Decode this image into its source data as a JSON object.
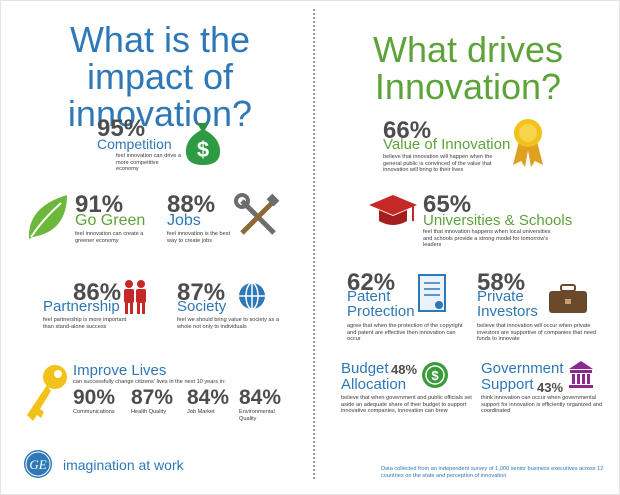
{
  "left": {
    "title": "What is the impact of innovation?",
    "competition": {
      "percent": "95%",
      "label": "Competition",
      "desc": "feel innovation can drive a more competitive economy",
      "icon": "money-bag-icon"
    },
    "green": {
      "percent": "91%",
      "label": "Go Green",
      "desc": "feel innovation can create a greener economy",
      "icon": "leaf-icon"
    },
    "jobs": {
      "percent": "88%",
      "label": "Jobs",
      "desc": "feel innovation is the best way to create jobs",
      "icon": "tools-icon"
    },
    "partnership": {
      "percent": "86%",
      "label": "Partnership",
      "desc": "feel partnership is more important than stand-alone success",
      "icon": "people-icon"
    },
    "society": {
      "percent": "87%",
      "label": "Society",
      "desc": "feel we should bring value to society as a whole not only to individuals",
      "icon": "globe-icon"
    },
    "lives": {
      "label": "Improve Lives",
      "desc": "can successfully change citizens' lives in the next 10 years in:",
      "icon": "key-icon",
      "metrics": [
        {
          "percent": "90%",
          "label": "Communications"
        },
        {
          "percent": "87%",
          "label": "Health Quality"
        },
        {
          "percent": "84%",
          "label": "Job  Market"
        },
        {
          "percent": "84%",
          "label": "Environmental Quality"
        }
      ]
    }
  },
  "right": {
    "title": "What drives Innovation?",
    "value": {
      "percent": "66%",
      "label": "Value of Innovation",
      "desc": "believe that innovation will happen when the general public is convinced of the value that innovation will bring to their lives",
      "icon": "award-ribbon-icon"
    },
    "universities": {
      "percent": "65%",
      "label": "Universities & Schools",
      "desc": "feel that innovation happens when local universities and schools provide a strong model for tomorrow's leaders",
      "icon": "graduation-cap-icon"
    },
    "patent": {
      "percent": "62%",
      "label": "Patent Protection",
      "desc": "agree that when the protection of the copyright and patent are effective then innovation can occur",
      "icon": "document-icon"
    },
    "investors": {
      "percent": "58%",
      "label": "Private Investors",
      "desc": "believe that innovation will occur when private investors are supportive of companies that need funds to innovate",
      "icon": "briefcase-icon"
    },
    "budget": {
      "percent": "48%",
      "label": "Budget Allocation",
      "desc": "believe that when government and public officials set aside an adequate share of their budget to support innovative companies, innovation can brew",
      "icon": "dollar-coin-icon"
    },
    "government": {
      "percent": "43%",
      "label": "Government Support",
      "desc": "think innovation can occur when governmental support for innovation is efficiently organized and coordinated",
      "icon": "government-building-icon"
    }
  },
  "footer": {
    "logo": "GE",
    "tagline": "imagination at work",
    "source": "Data collected from an independent survey of 1,000 senior business executives across 12 countries on the state and perception of innovation"
  },
  "colors": {
    "blue": "#2e78b7",
    "green": "#5ea33a",
    "gray": "#4d4d4d"
  }
}
